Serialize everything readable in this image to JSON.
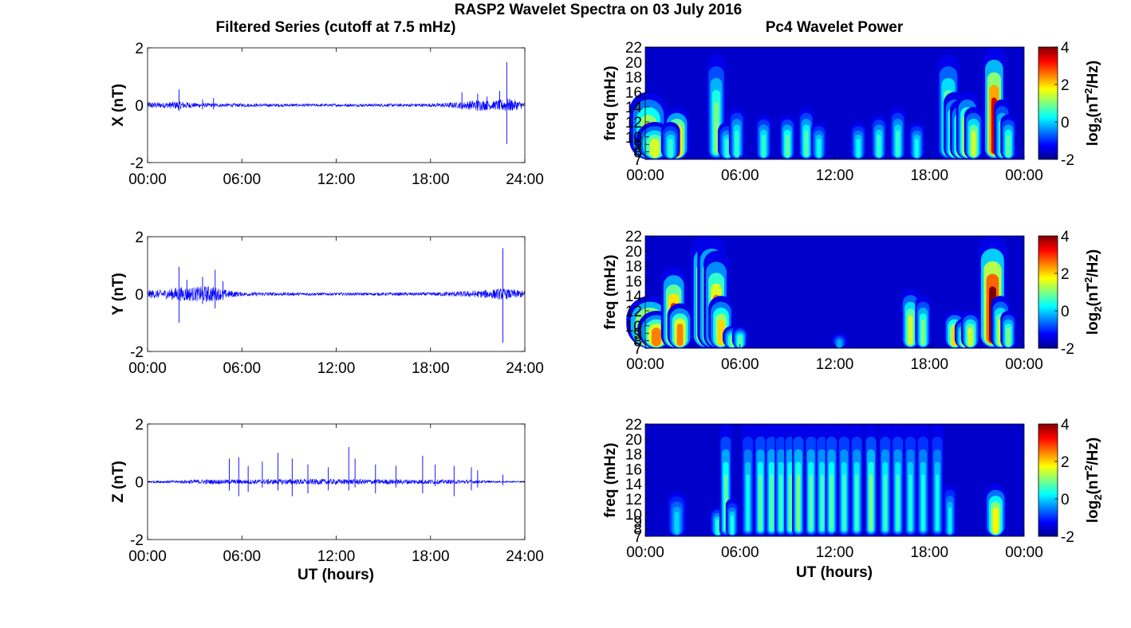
{
  "figure": {
    "suptitle": "RASP2 Wavelet Spectra on 03 July 2016",
    "left_title": "Filtered Series (cutoff at 7.5 mHz)",
    "right_title": "Pc4 Wavelet Power",
    "xlabel": "UT (hours)"
  },
  "chart_data": [
    {
      "type": "line",
      "ylabel": "X (nT)",
      "xlim": [
        0,
        24
      ],
      "ylim": [
        -2,
        2
      ],
      "xticks": [
        "00:00",
        "06:00",
        "12:00",
        "18:00",
        "24:00"
      ],
      "yticks": [
        "2",
        "0",
        "-2"
      ],
      "series": [
        {
          "color": "#0000ff",
          "baseline": 0.07,
          "envelope": [
            [
              0,
              0.12
            ],
            [
              1,
              0.1
            ],
            [
              2,
              0.15
            ],
            [
              3,
              0.08
            ],
            [
              4,
              0.07
            ],
            [
              6,
              0.06
            ],
            [
              10,
              0.05
            ],
            [
              14,
              0.05
            ],
            [
              18,
              0.06
            ],
            [
              20,
              0.12
            ],
            [
              21,
              0.2
            ],
            [
              22,
              0.15
            ],
            [
              22.9,
              0.25
            ],
            [
              24,
              0.1
            ]
          ],
          "spikes": [
            {
              "x": 2.0,
              "min": -0.2,
              "max": 0.55
            },
            {
              "x": 3.5,
              "min": -0.15,
              "max": 0.2
            },
            {
              "x": 4.2,
              "min": -0.15,
              "max": 0.25
            },
            {
              "x": 20.0,
              "min": -0.15,
              "max": 0.45
            },
            {
              "x": 21.0,
              "min": -0.2,
              "max": 0.4
            },
            {
              "x": 21.6,
              "min": -0.15,
              "max": 0.3
            },
            {
              "x": 22.4,
              "min": -0.15,
              "max": 0.5
            },
            {
              "x": 22.85,
              "min": -1.35,
              "max": 1.5
            }
          ]
        }
      ]
    },
    {
      "type": "heatmap",
      "ylabel": "freq (mHz)",
      "colorbar_label": "log2(nT2/Hz)",
      "xlim": [
        0,
        24
      ],
      "ylim": [
        7,
        22
      ],
      "xticks": [
        "00:00",
        "06:00",
        "12:00",
        "18:00",
        "00:00"
      ],
      "yticks": [
        "22",
        "20",
        "18",
        "16",
        "14",
        "12",
        "10",
        "9",
        "8",
        "7"
      ],
      "clim": [
        -2,
        4
      ],
      "cticks": [
        "4",
        "2",
        "0",
        "-2"
      ],
      "events": [
        {
          "t": 0.2,
          "peak": 2.0,
          "f_high": 16,
          "width": 0.12
        },
        {
          "t": 0.6,
          "peak": 1.5,
          "f_high": 12,
          "width": 0.12
        },
        {
          "t": 2.0,
          "peak": 3.0,
          "f_high": 14,
          "width": 0.08
        },
        {
          "t": 1.6,
          "peak": 0.5,
          "f_high": 12,
          "width": 0.06
        },
        {
          "t": 4.5,
          "peak": 1.0,
          "f_high": 21,
          "width": 0.06
        },
        {
          "t": 5.2,
          "peak": 0.5,
          "f_high": 12,
          "width": 0.06
        },
        {
          "t": 5.8,
          "peak": 0.5,
          "f_high": 14,
          "width": 0.05
        },
        {
          "t": 7.5,
          "peak": 0.5,
          "f_high": 13,
          "width": 0.05
        },
        {
          "t": 9.0,
          "peak": 0.8,
          "f_high": 13,
          "width": 0.05
        },
        {
          "t": 10.2,
          "peak": 0.7,
          "f_high": 14,
          "width": 0.05
        },
        {
          "t": 11.0,
          "peak": 0.3,
          "f_high": 12,
          "width": 0.05
        },
        {
          "t": 13.5,
          "peak": 0.3,
          "f_high": 12,
          "width": 0.05
        },
        {
          "t": 14.8,
          "peak": 0.5,
          "f_high": 13,
          "width": 0.05
        },
        {
          "t": 16.0,
          "peak": 0.5,
          "f_high": 14,
          "width": 0.05
        },
        {
          "t": 17.2,
          "peak": 0.3,
          "f_high": 12,
          "width": 0.05
        },
        {
          "t": 19.2,
          "peak": 1.5,
          "f_high": 21,
          "width": 0.07
        },
        {
          "t": 19.6,
          "peak": 2.0,
          "f_high": 16,
          "width": 0.07
        },
        {
          "t": 20.0,
          "peak": 1.8,
          "f_high": 15,
          "width": 0.07
        },
        {
          "t": 20.4,
          "peak": 2.2,
          "f_high": 16,
          "width": 0.07
        },
        {
          "t": 20.8,
          "peak": 1.5,
          "f_high": 14,
          "width": 0.06
        },
        {
          "t": 22.1,
          "peak": 3.5,
          "f_high": 22,
          "width": 0.07
        },
        {
          "t": 22.6,
          "peak": 1.0,
          "f_high": 15,
          "width": 0.05
        },
        {
          "t": 23.0,
          "peak": 0.8,
          "f_high": 13,
          "width": 0.05
        }
      ]
    },
    {
      "type": "line",
      "ylabel": "Y (nT)",
      "xlim": [
        0,
        24
      ],
      "ylim": [
        -2,
        2
      ],
      "xticks": [
        "00:00",
        "06:00",
        "12:00",
        "18:00",
        "24:00"
      ],
      "yticks": [
        "2",
        "0",
        "-2"
      ],
      "series": [
        {
          "color": "#0000ff",
          "baseline": 0.05,
          "envelope": [
            [
              0,
              0.15
            ],
            [
              1,
              0.15
            ],
            [
              2,
              0.25
            ],
            [
              3,
              0.25
            ],
            [
              4,
              0.3
            ],
            [
              5,
              0.15
            ],
            [
              6,
              0.07
            ],
            [
              10,
              0.05
            ],
            [
              14,
              0.05
            ],
            [
              18,
              0.06
            ],
            [
              21,
              0.12
            ],
            [
              22.5,
              0.2
            ],
            [
              24,
              0.12
            ]
          ],
          "spikes": [
            {
              "x": 2.0,
              "min": -1.0,
              "max": 0.95
            },
            {
              "x": 2.5,
              "min": -0.2,
              "max": 0.5
            },
            {
              "x": 3.5,
              "min": -0.35,
              "max": 0.6
            },
            {
              "x": 4.3,
              "min": -0.5,
              "max": 0.85
            },
            {
              "x": 4.8,
              "min": -0.2,
              "max": 0.45
            },
            {
              "x": 22.6,
              "min": -1.7,
              "max": 1.6
            }
          ]
        }
      ]
    },
    {
      "type": "heatmap",
      "ylabel": "freq (mHz)",
      "colorbar_label": "log2(nT2/Hz)",
      "xlim": [
        0,
        24
      ],
      "ylim": [
        7,
        22
      ],
      "xticks": [
        "00:00",
        "06:00",
        "12:00",
        "18:00",
        "00:00"
      ],
      "yticks": [
        "22",
        "20",
        "18",
        "16",
        "14",
        "12",
        "10",
        "9",
        "8",
        "7"
      ],
      "clim": [
        -2,
        4
      ],
      "cticks": [
        "4",
        "2",
        "0",
        "-2"
      ],
      "events": [
        {
          "t": 0.3,
          "peak": 3.5,
          "f_high": 14,
          "width": 0.15
        },
        {
          "t": 0.7,
          "peak": 2.5,
          "f_high": 12,
          "width": 0.12
        },
        {
          "t": 1.8,
          "peak": 3.0,
          "f_high": 18,
          "width": 0.08
        },
        {
          "t": 2.2,
          "peak": 2.5,
          "f_high": 13,
          "width": 0.08
        },
        {
          "t": 3.8,
          "peak": 3.5,
          "f_high": 22,
          "width": 0.09
        },
        {
          "t": 4.2,
          "peak": 3.0,
          "f_high": 22,
          "width": 0.09
        },
        {
          "t": 4.5,
          "peak": 2.5,
          "f_high": 20,
          "width": 0.08
        },
        {
          "t": 4.8,
          "peak": 2.0,
          "f_high": 14,
          "width": 0.08
        },
        {
          "t": 5.5,
          "peak": 1.0,
          "f_high": 10,
          "width": 0.06
        },
        {
          "t": 6.0,
          "peak": 0.8,
          "f_high": 10,
          "width": 0.05
        },
        {
          "t": 12.3,
          "peak": -0.2,
          "f_high": 9,
          "width": 0.05
        },
        {
          "t": 16.8,
          "peak": 1.5,
          "f_high": 15,
          "width": 0.06
        },
        {
          "t": 17.6,
          "peak": 1.0,
          "f_high": 14,
          "width": 0.05
        },
        {
          "t": 19.6,
          "peak": 2.0,
          "f_high": 12,
          "width": 0.07
        },
        {
          "t": 20.2,
          "peak": 1.5,
          "f_high": 11,
          "width": 0.06
        },
        {
          "t": 20.6,
          "peak": 1.5,
          "f_high": 12,
          "width": 0.06
        },
        {
          "t": 22.0,
          "peak": 4.0,
          "f_high": 22,
          "width": 0.09
        },
        {
          "t": 22.5,
          "peak": 1.5,
          "f_high": 14,
          "width": 0.06
        },
        {
          "t": 23.0,
          "peak": 1.0,
          "f_high": 12,
          "width": 0.05
        }
      ]
    },
    {
      "type": "line",
      "ylabel": "Z (nT)",
      "xlim": [
        0,
        24
      ],
      "ylim": [
        -2,
        2
      ],
      "xticks": [
        "00:00",
        "06:00",
        "12:00",
        "18:00",
        "24:00"
      ],
      "yticks": [
        "2",
        "0",
        "-2"
      ],
      "series": [
        {
          "color": "#0000ff",
          "baseline": 0.05,
          "envelope": [
            [
              0,
              0.04
            ],
            [
              2,
              0.05
            ],
            [
              3,
              0.08
            ],
            [
              6,
              0.08
            ],
            [
              10,
              0.1
            ],
            [
              14,
              0.09
            ],
            [
              18,
              0.08
            ],
            [
              21,
              0.06
            ],
            [
              22,
              0.03
            ],
            [
              24,
              0.02
            ]
          ],
          "spikes": [
            {
              "x": 5.2,
              "min": -0.3,
              "max": 0.8
            },
            {
              "x": 5.8,
              "min": -0.5,
              "max": 0.85
            },
            {
              "x": 6.4,
              "min": -0.35,
              "max": 0.55
            },
            {
              "x": 7.3,
              "min": -0.2,
              "max": 0.7
            },
            {
              "x": 8.3,
              "min": -0.3,
              "max": 1.0
            },
            {
              "x": 9.2,
              "min": -0.5,
              "max": 0.8
            },
            {
              "x": 10.2,
              "min": -0.4,
              "max": 0.6
            },
            {
              "x": 11.5,
              "min": -0.3,
              "max": 0.5
            },
            {
              "x": 12.8,
              "min": -0.3,
              "max": 1.2
            },
            {
              "x": 13.2,
              "min": -0.2,
              "max": 0.8
            },
            {
              "x": 14.5,
              "min": -0.4,
              "max": 0.6
            },
            {
              "x": 15.8,
              "min": -0.2,
              "max": 0.55
            },
            {
              "x": 17.5,
              "min": -0.4,
              "max": 0.9
            },
            {
              "x": 18.3,
              "min": -0.15,
              "max": 0.6
            },
            {
              "x": 19.5,
              "min": -0.5,
              "max": 0.55
            },
            {
              "x": 20.6,
              "min": -0.3,
              "max": 0.5
            },
            {
              "x": 21.0,
              "min": -0.2,
              "max": 0.4
            },
            {
              "x": 22.6,
              "min": -0.12,
              "max": 0.25
            }
          ]
        }
      ]
    },
    {
      "type": "heatmap",
      "ylabel": "freq (mHz)",
      "colorbar_label": "log2(nT2/Hz)",
      "xlim": [
        0,
        24
      ],
      "ylim": [
        7,
        22
      ],
      "xticks": [
        "00:00",
        "06:00",
        "12:00",
        "18:00",
        "00:00"
      ],
      "yticks": [
        "22",
        "20",
        "18",
        "16",
        "14",
        "12",
        "10",
        "9",
        "8",
        "7"
      ],
      "clim": [
        -2,
        4
      ],
      "cticks": [
        "4",
        "2",
        "0",
        "-2"
      ],
      "events": [
        {
          "t": 2.0,
          "peak": 0.0,
          "f_high": 13,
          "width": 0.06
        },
        {
          "t": 4.6,
          "peak": 0.5,
          "f_high": 11,
          "width": 0.05
        },
        {
          "t": 5.1,
          "peak": 0.8,
          "f_high": 22,
          "width": 0.04
        },
        {
          "t": 5.5,
          "peak": 0.4,
          "f_high": 12,
          "width": 0.04
        },
        {
          "t": 6.5,
          "peak": 0.3,
          "f_high": 22,
          "width": 0.04
        },
        {
          "t": 7.3,
          "peak": 0.8,
          "f_high": 22,
          "width": 0.04
        },
        {
          "t": 8.0,
          "peak": 0.8,
          "f_high": 22,
          "width": 0.04
        },
        {
          "t": 8.6,
          "peak": 0.6,
          "f_high": 22,
          "width": 0.04
        },
        {
          "t": 9.2,
          "peak": 0.8,
          "f_high": 22,
          "width": 0.04
        },
        {
          "t": 9.7,
          "peak": 1.0,
          "f_high": 22,
          "width": 0.04
        },
        {
          "t": 10.5,
          "peak": 0.8,
          "f_high": 22,
          "width": 0.04
        },
        {
          "t": 11.2,
          "peak": 0.6,
          "f_high": 22,
          "width": 0.04
        },
        {
          "t": 11.8,
          "peak": 0.8,
          "f_high": 22,
          "width": 0.04
        },
        {
          "t": 12.6,
          "peak": 0.6,
          "f_high": 22,
          "width": 0.04
        },
        {
          "t": 13.4,
          "peak": 0.6,
          "f_high": 22,
          "width": 0.04
        },
        {
          "t": 14.3,
          "peak": 1.0,
          "f_high": 22,
          "width": 0.04
        },
        {
          "t": 15.2,
          "peak": 0.6,
          "f_high": 22,
          "width": 0.04
        },
        {
          "t": 16.0,
          "peak": 0.6,
          "f_high": 22,
          "width": 0.04
        },
        {
          "t": 16.8,
          "peak": 0.4,
          "f_high": 22,
          "width": 0.04
        },
        {
          "t": 17.6,
          "peak": 0.4,
          "f_high": 22,
          "width": 0.04
        },
        {
          "t": 18.5,
          "peak": 0.3,
          "f_high": 22,
          "width": 0.04
        },
        {
          "t": 19.3,
          "peak": 0.2,
          "f_high": 14,
          "width": 0.04
        },
        {
          "t": 22.2,
          "peak": 1.8,
          "f_high": 14,
          "width": 0.07
        }
      ]
    }
  ]
}
